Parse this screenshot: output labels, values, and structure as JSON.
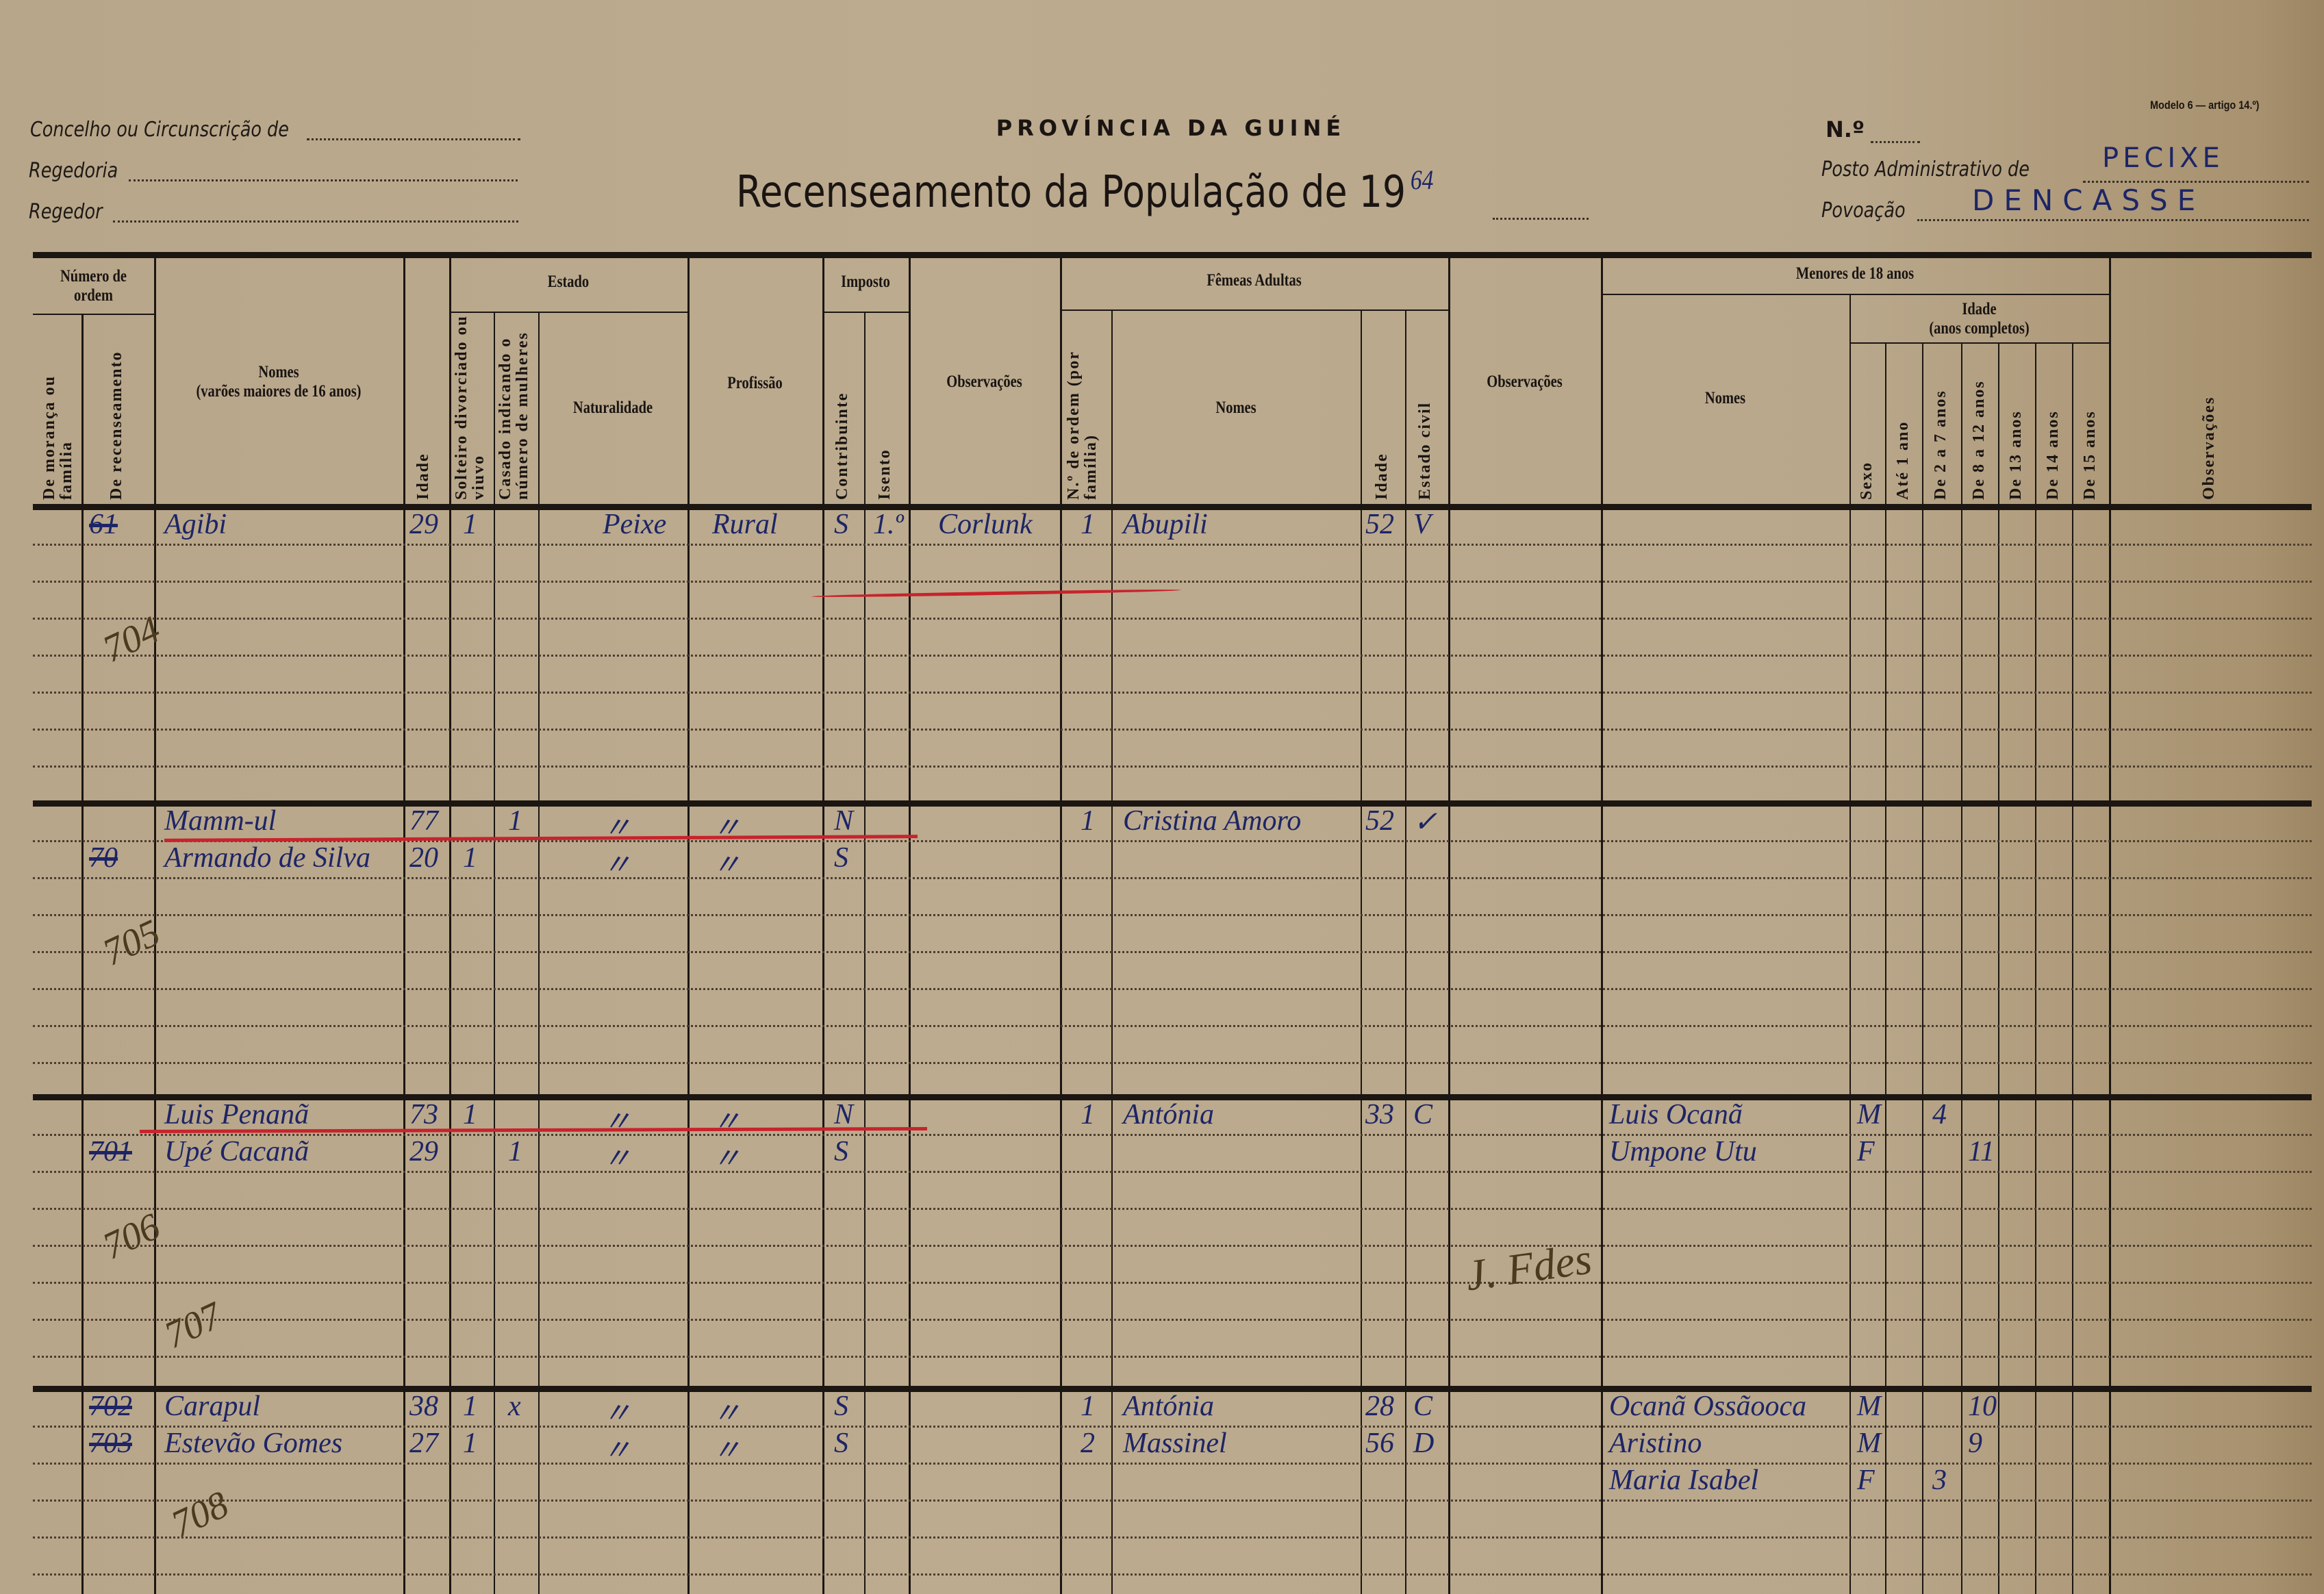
{
  "header": {
    "concelho_label": "Concelho ou Circunscrição de",
    "regedoria_label": "Regedoria",
    "regedor_label": "Regedor",
    "province": "PROVÍNCIA DA GUINÉ",
    "title": "Recenseamento da População de 19",
    "year_handwritten": "64",
    "model": "Modelo 6 — artigo 14.º)",
    "number_label": "N.º",
    "posto_label": "Posto Administrativo de",
    "posto_value": "PECIXE",
    "povoacao_label": "Povoação",
    "povoacao_value": "DENCASSE"
  },
  "columns": {
    "numero_ordem": "Número de ordem",
    "de_moranca": "De morança ou família",
    "de_recenseamento": "De recenseamento",
    "nomes_varoes": "Nomes",
    "nomes_varoes_sub": "(varões maiores de 16 anos)",
    "idade": "Idade",
    "estado": "Estado",
    "solteiro": "Solteiro divorciado ou viuvo",
    "casado": "Casado indicando o número de mulheres",
    "naturalidade": "Naturalidade",
    "profissao": "Profissão",
    "imposto": "Imposto",
    "contribuinte": "Contribuinte",
    "isento": "Isento",
    "observacoes_1": "Observações",
    "femeas": "Fêmeas Adultas",
    "f_ordem": "N.º de ordem (por família)",
    "f_nomes": "Nomes",
    "f_idade": "Idade",
    "f_estado_civil": "Estado civil",
    "observacoes_2": "Observações",
    "menores": "Menores de 18 anos",
    "m_nomes": "Nomes",
    "m_idade": "Idade",
    "m_idade_sub": "(anos completos)",
    "m_sexo": "Sexo",
    "m_ate1": "Até 1 ano",
    "m_2a7": "De 2 a 7 anos",
    "m_8a12": "De 8 a 12 anos",
    "m_13": "De 13 anos",
    "m_14": "De 14 anos",
    "m_15": "De 15 anos",
    "observacoes_3": "Observações"
  },
  "households": [
    {
      "family_number": "704",
      "men": [
        {
          "order": "61",
          "order_struck": true,
          "name": "Agibi",
          "age": "29",
          "solteiro": "1",
          "casado": "",
          "naturalidade": "Peixe",
          "profissao": "Rural",
          "contribuinte": "S",
          "isento": "1.º",
          "observacoes": "Corlunk"
        }
      ],
      "women": [
        {
          "order": "1",
          "name": "Abupili",
          "age": "52",
          "estado_civil": "V"
        }
      ],
      "minors": []
    },
    {
      "family_number": "705",
      "men": [
        {
          "order": "",
          "name": "Mamm-ul",
          "age": "77",
          "solteiro": "",
          "casado": "1",
          "naturalidade": "〃",
          "profissao": "〃",
          "contribuinte": "N",
          "isento": "",
          "observacoes": ""
        },
        {
          "order": "70",
          "order_struck": true,
          "name": "Armando de Silva",
          "age": "20",
          "solteiro": "1",
          "casado": "",
          "naturalidade": "〃",
          "profissao": "〃",
          "contribuinte": "S",
          "isento": "",
          "observacoes": ""
        }
      ],
      "women": [
        {
          "order": "1",
          "name": "Cristina Amoro",
          "age": "52",
          "estado_civil": "✓"
        }
      ],
      "minors": []
    },
    {
      "family_number": "706",
      "men": [
        {
          "order": "",
          "name": "Luis Penanã",
          "age": "73",
          "solteiro": "1",
          "casado": "",
          "naturalidade": "〃",
          "profissao": "〃",
          "contribuinte": "N",
          "isento": "",
          "observacoes": ""
        },
        {
          "order": "701",
          "order_struck": true,
          "name": "Upé Cacanã",
          "age": "29",
          "solteiro": "",
          "casado": "1",
          "naturalidade": "〃",
          "profissao": "〃",
          "contribuinte": "S",
          "isento": "",
          "observacoes": ""
        }
      ],
      "women": [
        {
          "order": "1",
          "name": "Antónia",
          "age": "33",
          "estado_civil": "C"
        }
      ],
      "minors": [
        {
          "name": "Luis Ocanã",
          "sexo": "M",
          "ate1": "",
          "2a7": "4",
          "8a12": ""
        },
        {
          "name": "Umpone Utu",
          "sexo": "F",
          "ate1": "",
          "2a7": "",
          "8a12": "11"
        }
      ],
      "extra_number": "707",
      "signature": "J. Fdes"
    },
    {
      "family_number": "708",
      "men": [
        {
          "order": "702",
          "order_struck": true,
          "name": "Carapul",
          "age": "38",
          "solteiro": "1",
          "casado": "x",
          "naturalidade": "〃",
          "profissao": "〃",
          "contribuinte": "S",
          "isento": "",
          "observacoes": ""
        },
        {
          "order": "703",
          "order_struck": true,
          "name": "Estevão Gomes",
          "age": "27",
          "solteiro": "1",
          "casado": "",
          "naturalidade": "〃",
          "profissao": "〃",
          "contribuinte": "S",
          "isento": "",
          "observacoes": ""
        }
      ],
      "women": [
        {
          "order": "1",
          "name": "Antónia",
          "age": "28",
          "estado_civil": "C"
        },
        {
          "order": "2",
          "name": "Massinel",
          "age": "56",
          "estado_civil": "D"
        }
      ],
      "minors": [
        {
          "name": "Ocanã Ossãooca",
          "sexo": "M",
          "ate1": "",
          "2a7": "",
          "8a12": "10"
        },
        {
          "name": "Aristino",
          "sexo": "M",
          "ate1": "",
          "2a7": "",
          "8a12": "9"
        },
        {
          "name": "Maria Isabel",
          "sexo": "F",
          "ate1": "",
          "2a7": "3",
          "8a12": ""
        }
      ]
    }
  ],
  "colors": {
    "paper": "#bba98c",
    "ink_blue": "#1d2566",
    "pencil": "#4a3b1e",
    "red_pencil": "#c8232c"
  }
}
